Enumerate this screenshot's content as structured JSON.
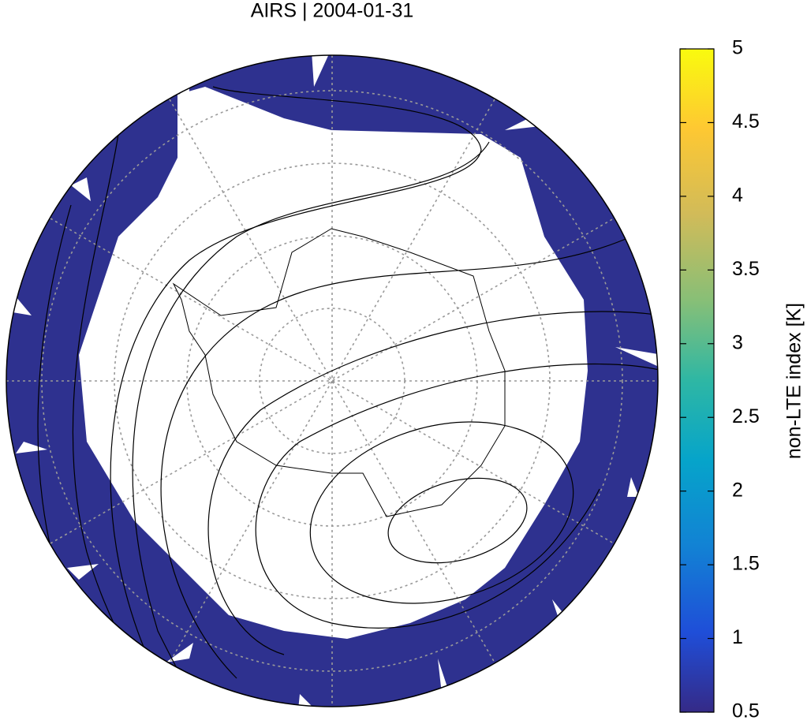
{
  "title": "AIRS | 2004-01-31",
  "colorbar": {
    "label": "non-LTE index [K]",
    "range": [
      0.5,
      5
    ],
    "ticks": [
      0.5,
      1,
      1.5,
      2,
      2.5,
      3,
      3.5,
      4,
      4.5,
      5
    ]
  }
}
